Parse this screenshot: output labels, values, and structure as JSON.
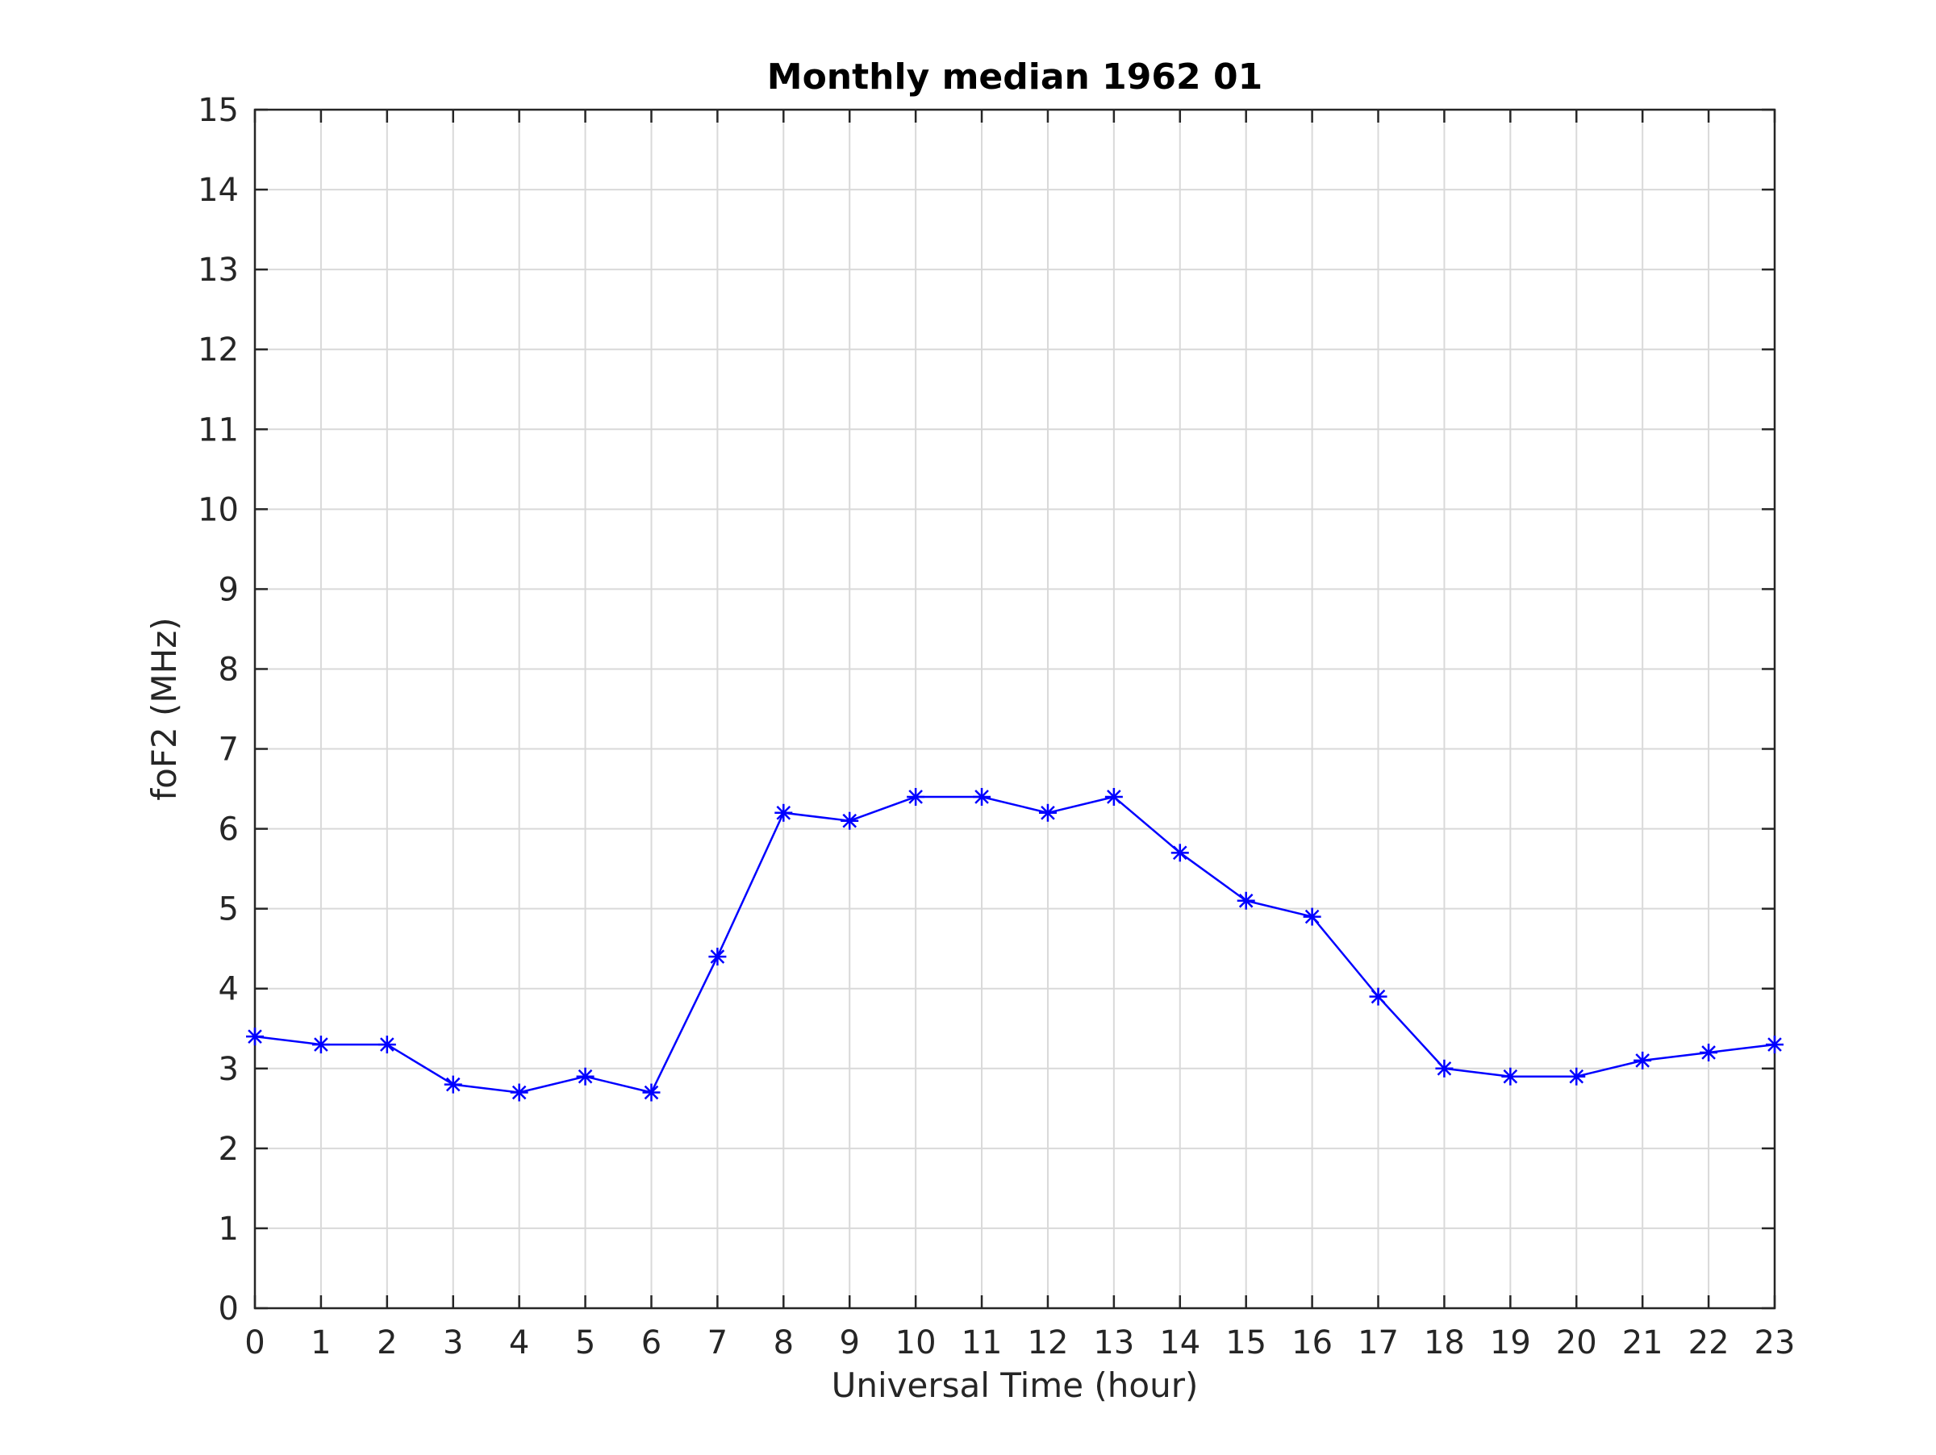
{
  "chart_data": {
    "type": "line",
    "title": "Monthly median 1962 01",
    "xlabel": "Universal Time (hour)",
    "ylabel": "foF2 (MHz)",
    "xlim": [
      0,
      23
    ],
    "ylim": [
      0,
      15
    ],
    "xticks": [
      0,
      1,
      2,
      3,
      4,
      5,
      6,
      7,
      8,
      9,
      10,
      11,
      12,
      13,
      14,
      15,
      16,
      17,
      18,
      19,
      20,
      21,
      22,
      23
    ],
    "yticks": [
      0,
      1,
      2,
      3,
      4,
      5,
      6,
      7,
      8,
      9,
      10,
      11,
      12,
      13,
      14,
      15
    ],
    "grid": true,
    "series": [
      {
        "color": "#0000ff",
        "marker": "asterisk",
        "x": [
          0,
          1,
          2,
          3,
          4,
          5,
          6,
          7,
          8,
          9,
          10,
          11,
          12,
          13,
          14,
          15,
          16,
          17,
          18,
          19,
          20,
          21,
          22,
          23
        ],
        "y": [
          3.4,
          3.3,
          3.3,
          2.8,
          2.7,
          2.9,
          2.7,
          4.4,
          6.2,
          6.1,
          6.4,
          6.4,
          6.2,
          6.4,
          5.7,
          5.1,
          4.9,
          3.9,
          3.0,
          2.9,
          2.9,
          3.1,
          3.2,
          3.3
        ]
      }
    ]
  }
}
